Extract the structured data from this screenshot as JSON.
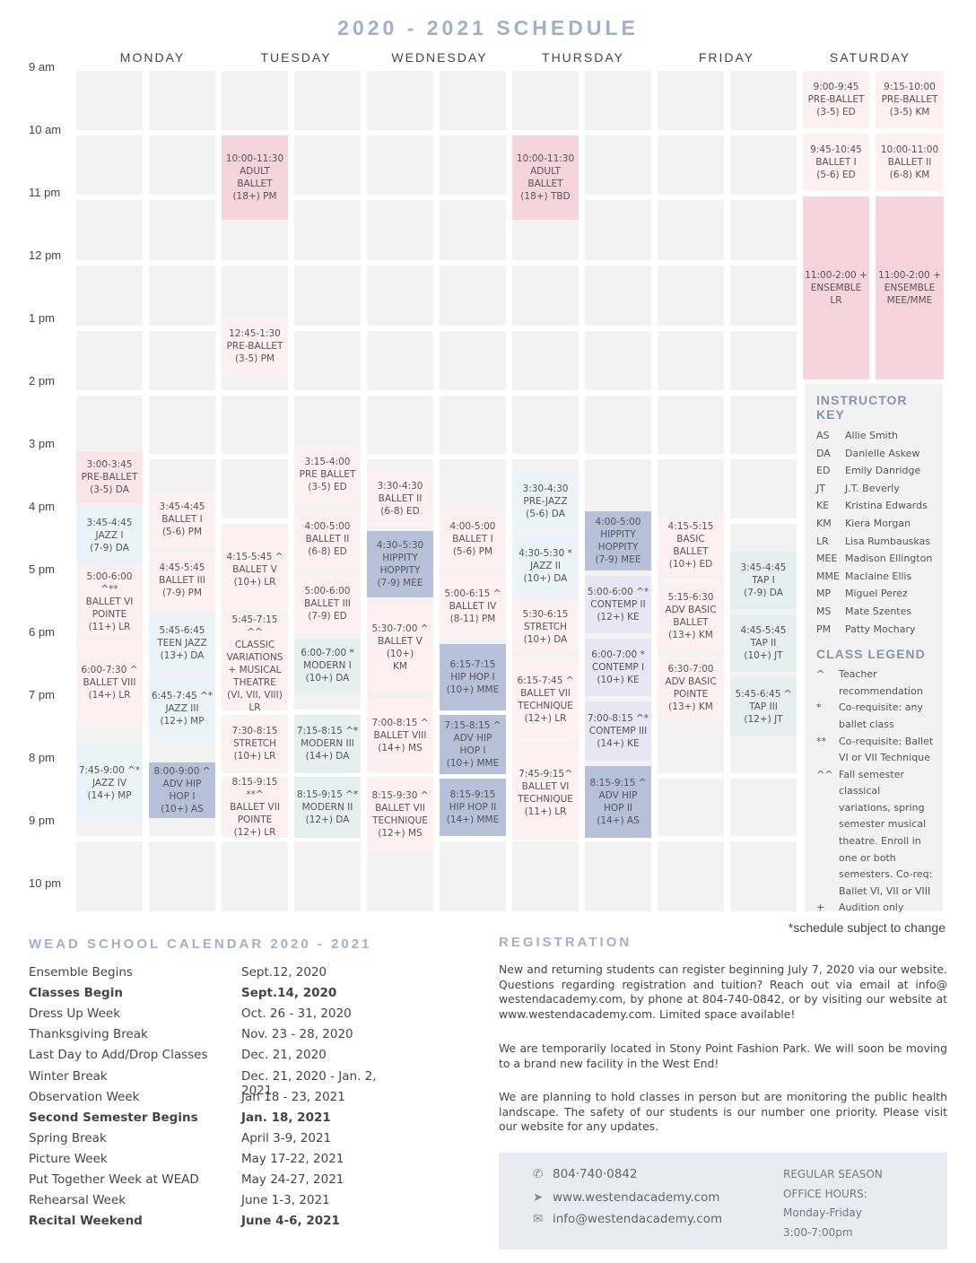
{
  "title": "2020 - 2021  SCHEDULE",
  "days": [
    "MONDAY",
    "TUESDAY",
    "WEDNESDAY",
    "THURSDAY",
    "FRIDAY",
    "SATURDAY"
  ],
  "times": [
    "9 am",
    "10 am",
    "11 pm",
    "12 pm",
    "1 pm",
    "2 pm",
    "3 pm",
    "4 pm",
    "5 pm",
    "6 pm",
    "7 pm",
    "8 pm",
    "9 pm",
    "10 pm"
  ],
  "classes": {
    "mon_a1": "3:00-3:45\nPRE-BALLET\n(3-5) DA",
    "mon_a2": "3:45-4:45\nJAZZ I\n(7-9) DA",
    "mon_a3": "5:00-6:00 ^**\nBALLET VI\nPOINTE\n(11+) LR",
    "mon_a4": "6:00-7:30 ^\nBALLET VIII\n(14+) LR",
    "mon_a5": "7:45-9:00 ^*\nJAZZ IV\n(14+) MP",
    "mon_b1": "3:45-4:45\nBALLET I\n(5-6) PM",
    "mon_b2": "4:45-5:45\nBALLET III\n(7-9) PM",
    "mon_b3": "5:45-6:45\nTEEN JAZZ\n(13+) DA",
    "mon_b4": "6:45-7:45 ^*\nJAZZ III\n(12+) MP",
    "mon_b5": "8:00-9:00 ^\nADV HIP\nHOP I\n(10+) AS",
    "tue_a1": "10:00-11:30\nADULT BALLET\n(18+) PM",
    "tue_a2": "12:45-1:30\nPRE-BALLET\n(3-5) PM",
    "tue_a3": "4:15-5:45 ^\nBALLET V\n(10+) LR",
    "tue_a4": "5:45-7:15 ^^\nCLASSIC\nVARIATIONS\n+ MUSICAL\nTHEATRE\n(VI, VII, VIII)\nLR",
    "tue_a5": "7:30-8:15\nSTRETCH\n(10+) LR",
    "tue_a6": "8:15-9:15 **^\nBALLET VII\nPOINTE\n(12+) LR",
    "tue_b1": "3:15-4:00\nPRE BALLET\n(3-5) ED",
    "tue_b2": "4:00-5:00\nBALLET II\n(6-8) ED",
    "tue_b3": "5:00-6:00\nBALLET III\n(7-9) ED",
    "tue_b4": "6:00-7:00 *\nMODERN I\n(10+) DA",
    "tue_b5": "7:15-8:15 ^*\nMODERN III\n(14+) DA",
    "tue_b6": "8:15-9:15 ^*\nMODERN II\n(12+) DA",
    "wed_a1": "3:30-4:30\nBALLET II\n(6-8) ED",
    "wed_a2": "4:30–5:30\nHIPPITY\nHOPPITY\n(7-9) MEE",
    "wed_a3": "5:30-7:00 ^\nBALLET V\n(10+)\nKM",
    "wed_a4": "7:00-8:15 ^\nBALLET VIII\n(14+) MS",
    "wed_a5": "8:15-9:30 ^\nBALLET VII\nTECHNIQUE\n(12+) MS",
    "wed_b1": "4:00-5:00\nBALLET I\n(5-6) PM",
    "wed_b2": "5:00-6:15 ^\nBALLET IV\n(8-11) PM",
    "wed_b3": "6:15-7:15\nHIP HOP I\n(10+) MME",
    "wed_b4": "7:15-8:15 ^\nADV HIP\nHOP I\n(10+) MME",
    "wed_b5": "8:15-9:15\nHIP HOP II\n(14+) MME",
    "thu_a1": "10:00-11:30\nADULT BALLET\n(18+) TBD",
    "thu_a2": "3:30-4:30\nPRE-JAZZ\n(5-6) DA",
    "thu_a3": "4:30-5:30 *\nJAZZ II\n(10+) DA",
    "thu_a4": "5:30-6:15\nSTRETCH\n(10+) DA",
    "thu_a5": "6:15-7:45 ^\nBALLET VII\nTECHNIQUE\n(12+) LR",
    "thu_a6": "7:45-9:15^\nBALLET VI\nTECHNIQUE\n(11+) LR",
    "thu_b1": "4:00-5:00\nHIPPITY\nHOPPITY\n(7-9) MEE",
    "thu_b2": "5:00-6:00 ^*\nCONTEMP II\n(12+) KE",
    "thu_b3": "6:00-7:00 *\nCONTEMP I\n(10+) KE",
    "thu_b4": "7:00-8:15 ^*\nCONTEMP III\n(14+) KE",
    "thu_b5": "8:15-9:15 ^\nADV HIP\nHOP II\n(14+) AS",
    "fri_a1": "4:15-5:15\nBASIC BALLET\n(10+) ED",
    "fri_a2": "5:15-6:30\nADV BASIC\nBALLET\n(13+) KM",
    "fri_a3": "6:30-7:00\nADV BASIC\nPOINTE\n(13+) KM",
    "fri_b1": "3:45-4:45\nTAP I\n(7-9) DA",
    "fri_b2": "4:45-5:45\nTAP II\n(10+) JT",
    "fri_b3": "5:45-6:45 ^\nTAP III\n(12+) JT",
    "sat_a1": "9:00-9:45\nPRE-BALLET\n(3-5) ED",
    "sat_a2": "9:45-10:45\nBALLET I\n(5-6) ED",
    "sat_a3": "11:00-2:00 +\nENSEMBLE\nLR",
    "sat_b1": "9:15-10:00\nPRE-BALLET\n(3-5) KM",
    "sat_b2": "10:00-11:00\nBALLET II\n(6-8) KM",
    "sat_b3": "11:00-2:00 +\nENSEMBLE\nMEE/MME"
  },
  "instructor_key": {
    "heading": "INSTRUCTOR KEY",
    "items": [
      {
        "code": "AS",
        "name": "Allie Smith"
      },
      {
        "code": "DA",
        "name": "Danielle Askew"
      },
      {
        "code": "ED",
        "name": "Emily Danridge"
      },
      {
        "code": "JT",
        "name": "J.T. Beverly"
      },
      {
        "code": "KE",
        "name": "Kristina Edwards"
      },
      {
        "code": "KM",
        "name": "Kiera Morgan"
      },
      {
        "code": "LR",
        "name": "Lisa Rumbauskas"
      },
      {
        "code": "MEE",
        "name": "Madison Ellington"
      },
      {
        "code": "MME",
        "name": "Maclaine Ellis"
      },
      {
        "code": "MP",
        "name": "Miguel Perez"
      },
      {
        "code": "MS",
        "name": "Mate Szentes"
      },
      {
        "code": "PM",
        "name": "Patty Mochary"
      }
    ]
  },
  "class_legend": {
    "heading": "CLASS LEGEND",
    "items": [
      {
        "sym": "^",
        "text": "Teacher recommendation"
      },
      {
        "sym": "*",
        "text": "Co-requisite: any ballet class"
      },
      {
        "sym": "**",
        "text": "Co-requisite: Ballet VI or VII Technique"
      },
      {
        "sym": "^^",
        "text": "Fall semester classical variations, spring semester musical theatre. Enroll in one or both semesters. Co-req: Ballet VI, VII or VIII"
      },
      {
        "sym": "+",
        "text": "Audition only"
      }
    ]
  },
  "schedule_note": "*schedule subject to change",
  "calendar": {
    "heading": "WEAD SCHOOL CALENDAR 2020 - 2021",
    "rows": [
      {
        "event": "Ensemble Begins",
        "date": "Sept.12, 2020"
      },
      {
        "event": "Classes Begin",
        "date": "Sept.14, 2020"
      },
      {
        "event": "Dress Up Week",
        "date": "Oct. 26 - 31, 2020"
      },
      {
        "event": "Thanksgiving Break",
        "date": "Nov. 23 - 28, 2020"
      },
      {
        "event": "Last Day to Add/Drop Classes",
        "date": "Dec. 21, 2020"
      },
      {
        "event": "Winter Break",
        "date": "Dec. 21, 2020 - Jan. 2, 2021"
      },
      {
        "event": "Observation Week",
        "date": "Jan 18 - 23, 2021"
      },
      {
        "event": "Second Semester Begins",
        "date": "Jan. 18, 2021"
      },
      {
        "event": "Spring Break",
        "date": "April 3-9, 2021"
      },
      {
        "event": "Picture Week",
        "date": "May 17-22, 2021"
      },
      {
        "event": "Put Together Week at WEAD",
        "date": "May 24-27, 2021"
      },
      {
        "event": "Rehearsal Week",
        "date": "June 1-3, 2021"
      },
      {
        "event": "Recital Weekend",
        "date": "June 4-6, 2021"
      }
    ]
  },
  "registration": {
    "heading": "REGISTRATION",
    "p1": "New and returning students can register beginning July 7, 2020 via our website. Questions regarding registration and tuition? Reach out via email at info@ westendacademy.com, by phone at 804-740-0842, or by visiting our website at www.westendacademy.com. Limited space available!",
    "p2": "We are temporarily located in Stony Point Fashion Park. We will soon be moving to a brand new facility in the West End!",
    "p3": "We are planning to hold classes in person but are monitoring the public health landscape. The safety of our students is our number one priority. Please visit our website for any updates."
  },
  "contact": {
    "phone": "804·740·0842",
    "web": "www.westendacademy.com",
    "email": "info@westendacademy.com",
    "hours_l1": "REGULAR SEASON",
    "hours_l2": "OFFICE HOURS:",
    "hours_l3": "Monday-Friday",
    "hours_l4": "3:00-7:00pm"
  }
}
